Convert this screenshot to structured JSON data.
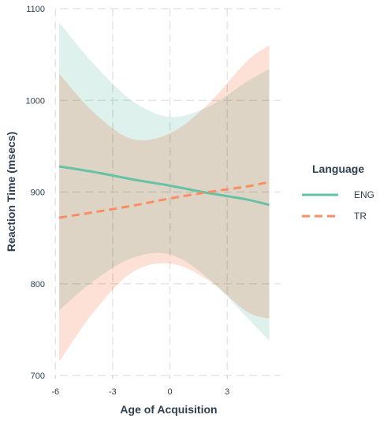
{
  "chart_data": {
    "type": "line",
    "title": "",
    "xlabel": "Age of Acquisition",
    "ylabel": "Reaction Time (msecs)",
    "xlim": [
      -6.3,
      5.8
    ],
    "ylim": [
      700,
      1100
    ],
    "x_ticks": [
      -6,
      -3,
      0,
      3
    ],
    "y_ticks": [
      700,
      800,
      900,
      1000,
      1100
    ],
    "grid": true,
    "legend": {
      "title": "Language",
      "position": "right"
    },
    "series": [
      {
        "name": "ENG",
        "color": "#66c2a5",
        "line_style": "solid",
        "ribbon_color": "#d9efe9",
        "x": [
          -5.8,
          -4,
          -2,
          0,
          2,
          4,
          5.2
        ],
        "y": [
          928,
          922,
          914,
          907,
          899,
          892,
          886
        ],
        "ci_upper": [
          1085,
          1040,
          1000,
          982,
          993,
          1020,
          1034
        ],
        "ci_lower": [
          771,
          803,
          828,
          832,
          806,
          764,
          738
        ]
      },
      {
        "name": "TR",
        "color": "#fc8d62",
        "line_style": "dashed",
        "ribbon_color": "#fddccf",
        "x": [
          -5.8,
          -4,
          -2,
          0,
          2,
          4,
          5.2
        ],
        "y": [
          872,
          878,
          885,
          893,
          900,
          906,
          911
        ],
        "ci_upper": [
          1029,
          987,
          958,
          964,
          996,
          1042,
          1060
        ],
        "ci_lower": [
          715,
          769,
          812,
          822,
          804,
          770,
          762
        ]
      }
    ]
  }
}
